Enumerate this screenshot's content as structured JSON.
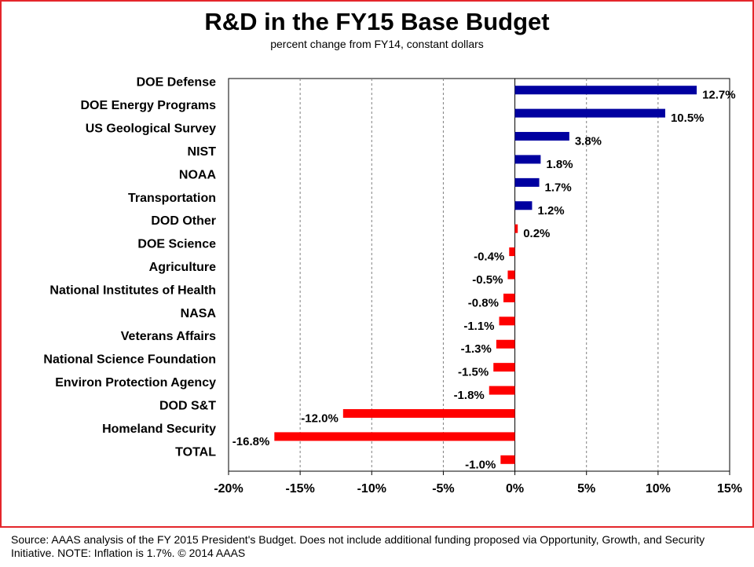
{
  "chart_data": {
    "type": "bar",
    "orientation": "horizontal",
    "title": "R&D in the FY15 Base Budget",
    "subtitle": "percent change from FY14, constant dollars",
    "categories": [
      "DOE Defense",
      "DOE Energy Programs",
      "US Geological Survey",
      "NIST",
      "NOAA",
      "Transportation",
      "DOD Other",
      "DOE Science",
      "Agriculture",
      "National Institutes of Health",
      "NASA",
      "Veterans Affairs",
      "National Science Foundation",
      "Environ Protection Agency",
      "DOD S&T",
      "Homeland Security",
      "TOTAL"
    ],
    "values": [
      12.7,
      10.5,
      3.8,
      1.8,
      1.7,
      1.2,
      0.2,
      -0.4,
      -0.5,
      -0.8,
      -1.1,
      -1.3,
      -1.5,
      -1.8,
      -12.0,
      -16.8,
      -1.0
    ],
    "data_labels": [
      "12.7%",
      "10.5%",
      "3.8%",
      "1.8%",
      "1.7%",
      "1.2%",
      "0.2%",
      "-0.4%",
      "-0.5%",
      "-0.8%",
      "-1.1%",
      "-1.3%",
      "-1.5%",
      "-1.8%",
      "-12.0%",
      "-16.8%",
      "-1.0%"
    ],
    "bar_colors": [
      "#0000a0",
      "#0000a0",
      "#0000a0",
      "#0000a0",
      "#0000a0",
      "#0000a0",
      "#ff0000",
      "#ff0000",
      "#ff0000",
      "#ff0000",
      "#ff0000",
      "#ff0000",
      "#ff0000",
      "#ff0000",
      "#ff0000",
      "#ff0000",
      "#ff0000"
    ],
    "xlim": [
      -20,
      15
    ],
    "xticks": [
      -20,
      -15,
      -10,
      -5,
      0,
      5,
      10,
      15
    ],
    "xtick_labels": [
      "-20%",
      "-15%",
      "-10%",
      "-5%",
      "0%",
      "5%",
      "10%",
      "15%"
    ],
    "grid": "vertical dashed",
    "legend": "none"
  },
  "footer": {
    "source": "Source: AAAS analysis of the FY 2015 President's Budget. Does not include additional funding proposed via Opportunity, Growth, and Security Initiative. NOTE: Inflation is 1.7%. © 2014 AAAS"
  },
  "colors": {
    "frame": "#e4262b",
    "positive_bar": "#0000a0",
    "negative_bar": "#ff0000"
  }
}
